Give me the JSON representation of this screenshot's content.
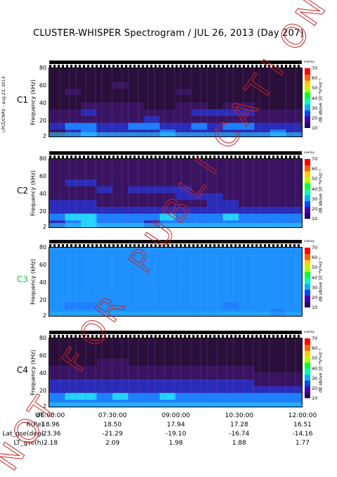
{
  "title": "CLUSTER-WHISPER Spectrogram / JUL 26, 2013 (Day 207)",
  "side_tag": "LPCE/CNRS - aug 23, 2013",
  "overlay_word": "overlay",
  "watermark": "NOT FOR PUBLICATION",
  "colors": {
    "background_c3": "#1e90ff",
    "background_dark": "#2a0f3a",
    "colorbar": [
      "#2a0060",
      "#4400b0",
      "#0044ff",
      "#00b0ff",
      "#00ffb0",
      "#00ff30",
      "#b0ff00",
      "#ffd000",
      "#ff6000",
      "#ff0000"
    ],
    "watermark": "#cc2222",
    "c3_label": "#27b84a"
  },
  "chart_data": [
    {
      "type": "heatmap",
      "spacecraft": "C1",
      "label_color": "#000000",
      "ylabel": "Frequency (kHz)",
      "yticks": [
        2,
        20,
        40,
        60,
        80
      ],
      "ylim": [
        2,
        80
      ],
      "colorbar_label": "dB above 10⁻⁸V²Hz⁻¹",
      "colorbar_ticks": [
        10,
        20,
        30,
        40,
        50,
        60,
        70
      ],
      "intensity_rows": [
        [
          1,
          1,
          1,
          1,
          1,
          1,
          1,
          1,
          1,
          1,
          1,
          1,
          1,
          1,
          1,
          1
        ],
        [
          1,
          1,
          1,
          1,
          1,
          1,
          1,
          1,
          1,
          1,
          1,
          1,
          1,
          1,
          1,
          1
        ],
        [
          1,
          1,
          1,
          1,
          2,
          1,
          1,
          1,
          1,
          1,
          1,
          1,
          1,
          1,
          1,
          1
        ],
        [
          1,
          2,
          1,
          1,
          1,
          1,
          1,
          1,
          2,
          1,
          1,
          1,
          1,
          1,
          1,
          1
        ],
        [
          1,
          1,
          1,
          1,
          1,
          1,
          1,
          1,
          1,
          1,
          1,
          1,
          1,
          1,
          1,
          1
        ],
        [
          1,
          1,
          2,
          2,
          2,
          2,
          1,
          1,
          2,
          2,
          1,
          2,
          2,
          1,
          1,
          1
        ],
        [
          2,
          2,
          3,
          2,
          2,
          2,
          2,
          2,
          2,
          3,
          3,
          3,
          3,
          2,
          2,
          2
        ],
        [
          2,
          2,
          2,
          2,
          2,
          2,
          3,
          2,
          2,
          2,
          2,
          2,
          2,
          2,
          2,
          2
        ],
        [
          3,
          4,
          4,
          3,
          3,
          4,
          4,
          3,
          3,
          4,
          3,
          4,
          4,
          3,
          3,
          3
        ],
        [
          2,
          3,
          4,
          3,
          3,
          3,
          3,
          4,
          3,
          3,
          3,
          3,
          3,
          3,
          4,
          3
        ]
      ]
    },
    {
      "type": "heatmap",
      "spacecraft": "C2",
      "label_color": "#000000",
      "ylabel": "Frequency (kHz)",
      "yticks": [
        2,
        20,
        40,
        60,
        80
      ],
      "ylim": [
        2,
        80
      ],
      "colorbar_label": "dB above 10⁻⁸V²Hz⁻¹",
      "colorbar_ticks": [
        10,
        20,
        30,
        40,
        50,
        60,
        70
      ],
      "intensity_rows": [
        [
          2,
          2,
          2,
          2,
          2,
          2,
          2,
          2,
          2,
          2,
          2,
          2,
          2,
          2,
          2,
          2
        ],
        [
          2,
          2,
          2,
          2,
          2,
          2,
          2,
          2,
          2,
          2,
          2,
          2,
          2,
          2,
          2,
          2
        ],
        [
          2,
          2,
          2,
          2,
          2,
          2,
          2,
          2,
          2,
          2,
          2,
          2,
          2,
          2,
          2,
          2
        ],
        [
          2,
          3,
          3,
          2,
          2,
          2,
          2,
          2,
          2,
          2,
          2,
          2,
          2,
          2,
          2,
          2
        ],
        [
          2,
          2,
          2,
          3,
          2,
          3,
          3,
          3,
          3,
          2,
          2,
          2,
          2,
          2,
          2,
          2
        ],
        [
          2,
          2,
          2,
          2,
          2,
          2,
          2,
          2,
          3,
          3,
          3,
          2,
          2,
          2,
          2,
          2
        ],
        [
          3,
          3,
          3,
          2,
          2,
          2,
          2,
          2,
          2,
          2,
          3,
          3,
          2,
          2,
          2,
          2
        ],
        [
          3,
          3,
          3,
          3,
          3,
          3,
          3,
          3,
          3,
          3,
          3,
          3,
          3,
          3,
          3,
          3
        ],
        [
          4,
          5,
          5,
          4,
          4,
          4,
          4,
          5,
          4,
          4,
          4,
          5,
          4,
          4,
          4,
          4
        ],
        [
          3,
          4,
          5,
          4,
          4,
          4,
          3,
          4,
          4,
          4,
          4,
          4,
          4,
          4,
          4,
          4
        ]
      ]
    },
    {
      "type": "heatmap",
      "spacecraft": "C3",
      "label_color": "#27b84a",
      "ylabel": "Frequency (kHz)",
      "yticks": [
        2,
        20,
        40,
        60,
        80
      ],
      "ylim": [
        2,
        80
      ],
      "colorbar_label": "dB above 10⁻⁸V²Hz⁻¹",
      "colorbar_ticks": [
        10,
        20,
        30,
        40,
        50,
        60,
        70
      ],
      "intensity_rows": [
        [
          3,
          3,
          3,
          3,
          3,
          3,
          3,
          3,
          3,
          3,
          3,
          3,
          3,
          3,
          3,
          3
        ],
        [
          3,
          3,
          3,
          3,
          3,
          3,
          3,
          3,
          3,
          3,
          3,
          3,
          3,
          3,
          3,
          3
        ],
        [
          3,
          3,
          3,
          3,
          3,
          3,
          3,
          3,
          3,
          3,
          3,
          3,
          3,
          3,
          3,
          3
        ],
        [
          3,
          3,
          3,
          3,
          3,
          3,
          3,
          3,
          3,
          3,
          3,
          3,
          3,
          3,
          3,
          3
        ],
        [
          3,
          3,
          3,
          3,
          3,
          3,
          3,
          3,
          3,
          3,
          3,
          3,
          3,
          3,
          3,
          3
        ],
        [
          3,
          3,
          3,
          3,
          3,
          3,
          3,
          3,
          3,
          3,
          3,
          3,
          3,
          3,
          3,
          3
        ],
        [
          3,
          3,
          3,
          3,
          3,
          3,
          3,
          3,
          3,
          3,
          3,
          3,
          3,
          3,
          3,
          3
        ],
        [
          3,
          3,
          3,
          3,
          3,
          3,
          3,
          3,
          3,
          3,
          3,
          3,
          3,
          3,
          3,
          3
        ],
        [
          3,
          4,
          4,
          3,
          3,
          3,
          3,
          3,
          3,
          3,
          3,
          4,
          3,
          3,
          3,
          3
        ],
        [
          3,
          3,
          3,
          3,
          3,
          3,
          3,
          3,
          3,
          3,
          3,
          3,
          3,
          3,
          4,
          3
        ]
      ]
    },
    {
      "type": "heatmap",
      "spacecraft": "C4",
      "label_color": "#000000",
      "ylabel": "Frequency (kHz)",
      "yticks": [
        2,
        20,
        40,
        60,
        80
      ],
      "ylim": [
        2,
        80
      ],
      "colorbar_label": "dB above 10⁻⁸V²Hz⁻¹",
      "colorbar_ticks": [
        10,
        20,
        30,
        40,
        50,
        60,
        70
      ],
      "intensity_rows": [
        [
          1,
          1,
          1,
          1,
          1,
          1,
          1,
          1,
          1,
          1,
          1,
          1,
          1,
          1,
          1,
          1
        ],
        [
          1,
          1,
          1,
          1,
          1,
          1,
          1,
          1,
          1,
          1,
          1,
          1,
          1,
          1,
          1,
          1
        ],
        [
          1,
          1,
          1,
          1,
          1,
          1,
          1,
          1,
          1,
          1,
          1,
          1,
          1,
          1,
          1,
          1
        ],
        [
          1,
          1,
          1,
          2,
          2,
          1,
          1,
          1,
          1,
          1,
          1,
          1,
          1,
          1,
          1,
          1
        ],
        [
          2,
          2,
          2,
          2,
          2,
          2,
          2,
          2,
          2,
          2,
          2,
          2,
          2,
          1,
          1,
          1
        ],
        [
          2,
          2,
          2,
          2,
          2,
          2,
          2,
          2,
          2,
          2,
          2,
          2,
          2,
          2,
          2,
          2
        ],
        [
          3,
          3,
          3,
          3,
          3,
          3,
          3,
          3,
          3,
          3,
          3,
          3,
          3,
          2,
          2,
          2
        ],
        [
          3,
          3,
          3,
          3,
          3,
          3,
          3,
          3,
          3,
          3,
          3,
          3,
          3,
          3,
          3,
          3
        ],
        [
          4,
          5,
          5,
          4,
          5,
          4,
          4,
          5,
          4,
          4,
          4,
          4,
          4,
          4,
          4,
          4
        ],
        [
          4,
          4,
          4,
          4,
          4,
          4,
          4,
          4,
          4,
          4,
          4,
          4,
          4,
          4,
          4,
          4
        ]
      ]
    }
  ],
  "ephemeris": {
    "rows": [
      {
        "label": "UT",
        "values": [
          "06:00:00",
          "07:30:00",
          "09:00:00",
          "10:30:00",
          "12:00:00"
        ]
      },
      {
        "label": "R(Re)",
        "values": [
          "18.96",
          "18.50",
          "17.94",
          "17.28",
          "16.51"
        ]
      },
      {
        "label": "Lat_gse(deg)",
        "values": [
          "-23.36",
          "-21.29",
          "-19.10",
          "-16.74",
          "-14.16"
        ]
      },
      {
        "label": "LT_gse(h)",
        "values": [
          "2.18",
          "2.09",
          "1.98",
          "1.88",
          "1.77"
        ]
      }
    ]
  }
}
